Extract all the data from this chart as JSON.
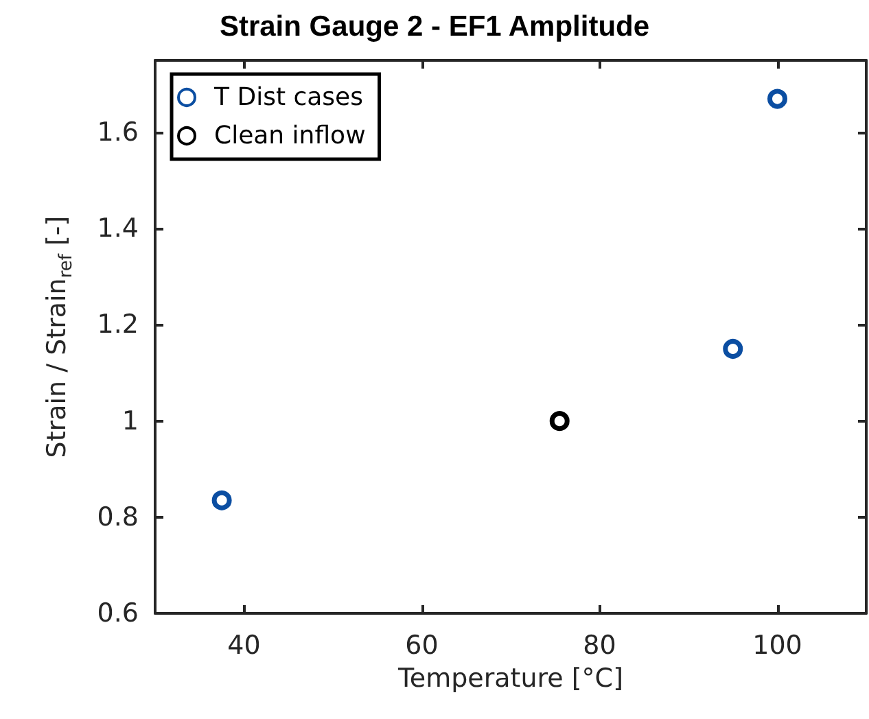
{
  "chart_data": {
    "type": "scatter",
    "title": "Strain Gauge 2 - EF1 Amplitude",
    "xlabel": "Temperature [°C]",
    "ylabel": "Strain / Strain$_{ref}$ [-]",
    "series": [
      {
        "name": "T Dist cases",
        "color": "#0b4ea2",
        "x": [
          37.5,
          95,
          100
        ],
        "values": [
          0.835,
          1.15,
          1.67
        ]
      },
      {
        "name": "Clean inflow",
        "color": "#000000",
        "x": [
          75.5
        ],
        "values": [
          1.0
        ]
      }
    ],
    "xlim": [
      30,
      110
    ],
    "xticks": [
      40,
      60,
      80,
      100
    ],
    "ylim": [
      0.6,
      1.75
    ],
    "yticks": [
      0.6,
      0.8,
      1,
      1.2,
      1.4,
      1.6
    ],
    "legend": "top left",
    "marker": "circle",
    "grid": false
  }
}
